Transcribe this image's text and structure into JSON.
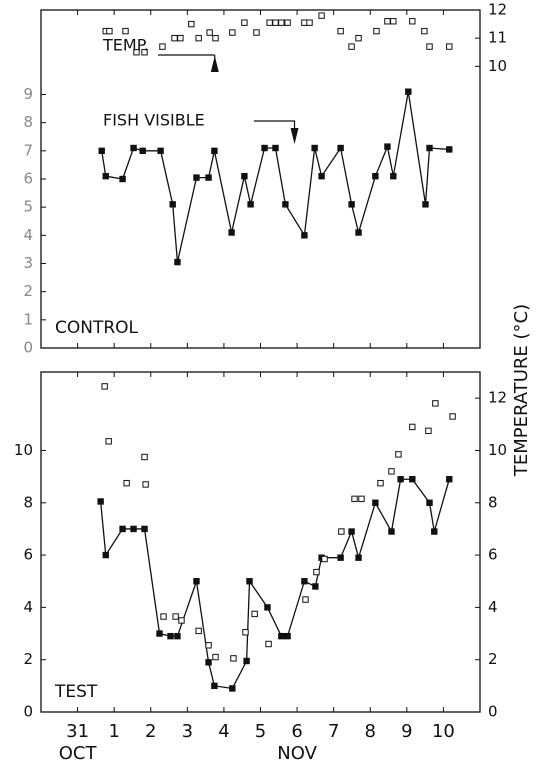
{
  "chart_data": [
    {
      "type": "line",
      "panel_label": "CONTROL",
      "xlim": [
        -1,
        11
      ],
      "ylim": [
        0,
        12
      ],
      "yticks": [
        0,
        1,
        2,
        3,
        4,
        5,
        6,
        7,
        8,
        9
      ],
      "y2lim": [
        0,
        12
      ],
      "y2ticks": [
        10,
        11,
        12
      ],
      "annotations": [
        {
          "text": "TEMP.",
          "x": 3.75
        },
        {
          "text": "FISH VISIBLE",
          "x": 5.93
        }
      ],
      "series": [
        {
          "color": "#111111",
          "style": "line",
          "x": [
            0.66,
            0.77,
            1.23,
            1.53,
            1.78,
            2.27,
            2.6,
            2.73,
            3.25,
            3.58,
            3.74,
            4.21,
            4.56,
            4.73,
            5.11,
            5.41,
            5.68,
            6.2,
            6.48,
            6.67,
            7.19,
            7.49,
            7.68,
            8.14,
            8.47,
            8.63,
            9.04,
            9.51,
            9.62,
            10.16
          ],
          "values": [
            7.0,
            6.1,
            6.0,
            7.1,
            7.0,
            7.0,
            5.1,
            3.05,
            6.05,
            6.05,
            7.0,
            4.1,
            6.1,
            5.1,
            7.1,
            7.1,
            5.1,
            4.0,
            7.1,
            6.1,
            7.1,
            5.1,
            4.1,
            6.1,
            7.15,
            6.1,
            9.1,
            5.1,
            7.1,
            7.05
          ]
        },
        {
          "color": "#111111",
          "style": "points",
          "axis": "y2",
          "x": [
            0.77,
            0.87,
            1.31,
            1.61,
            1.83,
            2.32,
            2.65,
            2.81,
            3.11,
            3.31,
            3.61,
            3.77,
            4.23,
            4.56,
            4.89,
            5.25,
            5.41,
            5.57,
            5.74,
            6.2,
            6.34,
            6.67,
            7.19,
            7.49,
            7.68,
            8.17,
            8.47,
            8.63,
            9.15,
            9.48,
            9.62,
            10.16
          ],
          "values": [
            11.25,
            11.25,
            11.25,
            10.5,
            10.5,
            10.7,
            11,
            11,
            11.5,
            11,
            11.2,
            11,
            11.2,
            11.55,
            11.2,
            11.55,
            11.55,
            11.55,
            11.55,
            11.55,
            11.55,
            11.8,
            11.25,
            10.7,
            11,
            11.25,
            11.6,
            11.6,
            11.6,
            11.25,
            10.7,
            10.7
          ]
        }
      ]
    },
    {
      "type": "line",
      "panel_label": "TEST",
      "xlim": [
        -1,
        11
      ],
      "xticks": [
        {
          "value": 0,
          "label": "31"
        },
        1,
        2,
        3,
        4,
        5,
        6,
        7,
        8,
        9,
        10
      ],
      "month_labels": [
        {
          "value": 0,
          "label": "OCT"
        },
        {
          "value": 6,
          "label": "NOV"
        }
      ],
      "ylim": [
        0,
        13
      ],
      "yticks": [
        0,
        2,
        4,
        6,
        8,
        10
      ],
      "y2lim": [
        0,
        13
      ],
      "y2ticks": [
        0,
        2,
        4,
        6,
        8,
        10,
        12
      ],
      "y2label": "TEMPERATURE (°C)",
      "series": [
        {
          "color": "#111111",
          "style": "line",
          "x": [
            0.63,
            0.77,
            1.23,
            1.53,
            1.83,
            2.24,
            2.54,
            2.73,
            3.25,
            3.58,
            3.74,
            4.23,
            4.62,
            4.7,
            5.19,
            5.57,
            5.74,
            6.2,
            6.5,
            6.67,
            7.19,
            7.49,
            7.68,
            8.14,
            8.58,
            8.83,
            9.15,
            9.62,
            9.75,
            10.16
          ],
          "values": [
            8.05,
            6,
            7,
            7,
            7,
            3,
            2.9,
            2.9,
            5,
            1.9,
            1,
            0.9,
            1.95,
            5,
            4,
            2.9,
            2.9,
            5,
            4.8,
            5.9,
            5.9,
            6.9,
            5.9,
            8,
            6.9,
            8.9,
            8.9,
            8,
            6.9,
            8.9
          ]
        },
        {
          "color": "#111111",
          "style": "points",
          "axis": "y2",
          "x": [
            0.74,
            0.85,
            1.34,
            1.83,
            1.86,
            2.35,
            2.68,
            2.84,
            3.31,
            3.58,
            3.77,
            4.26,
            4.59,
            4.84,
            5.22,
            6.23,
            6.53,
            6.75,
            7.21,
            7.57,
            7.76,
            8.28,
            8.58,
            8.77,
            9.15,
            9.59,
            9.78,
            10.25
          ],
          "values": [
            12.45,
            10.35,
            8.75,
            9.75,
            8.7,
            3.65,
            3.65,
            3.5,
            3.1,
            2.55,
            2.1,
            2.05,
            3.05,
            3.75,
            2.6,
            4.3,
            5.35,
            5.85,
            6.9,
            8.15,
            8.15,
            8.75,
            9.2,
            9.85,
            10.9,
            10.75,
            11.8,
            11.3
          ]
        }
      ]
    }
  ]
}
